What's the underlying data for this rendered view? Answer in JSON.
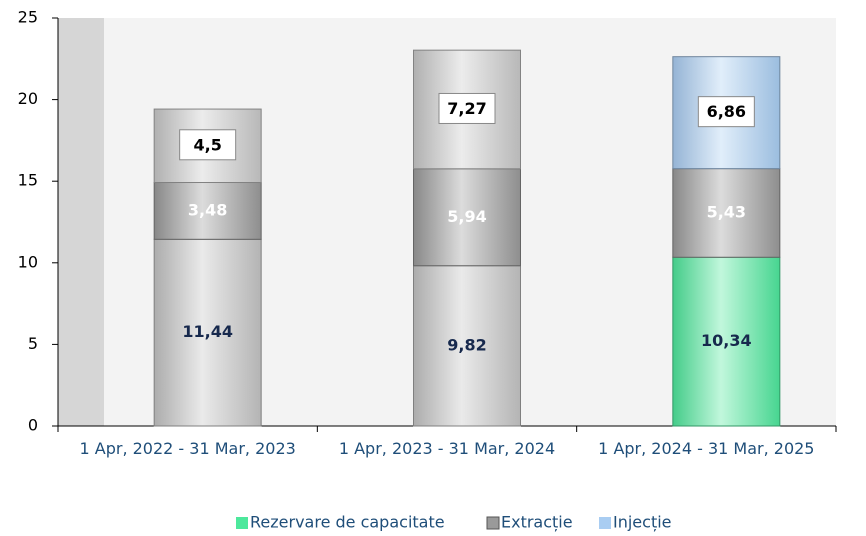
{
  "chart_data": {
    "type": "stacked_bar",
    "categories": [
      "1 Apr, 2022 - 31 Mar, 2023",
      "1 Apr, 2023 - 31 Mar, 2024",
      "1 Apr, 2024 - 31 Mar, 2025"
    ],
    "series": [
      {
        "name": "Rezervare de capacitate",
        "color": "#4de89c",
        "point_colors": [
          "#c4c4c4",
          "#c4c4c4",
          "#4de89c"
        ],
        "values": [
          11.44,
          9.82,
          10.34
        ],
        "value_labels": [
          "11,44",
          "9,82",
          "10,34"
        ]
      },
      {
        "name": "Extracție",
        "color": "#9a9a9a",
        "point_colors": [
          "#9a9a9a",
          "#9a9a9a",
          "#9a9a9a"
        ],
        "values": [
          3.48,
          5.94,
          5.43
        ],
        "value_labels": [
          "3,48",
          "5,94",
          "5,43"
        ]
      },
      {
        "name": "Injecție",
        "color": "#a9cdf2",
        "point_colors": [
          "#c8c8c8",
          "#c8c8c8",
          "#a9cdf2"
        ],
        "values": [
          4.5,
          7.27,
          6.86
        ],
        "value_labels": [
          "4,5",
          "7,27",
          "6,86"
        ]
      }
    ],
    "ylim": [
      0,
      25
    ],
    "yticks": [
      0,
      5,
      10,
      15,
      20,
      25
    ],
    "legend": "bottom"
  }
}
